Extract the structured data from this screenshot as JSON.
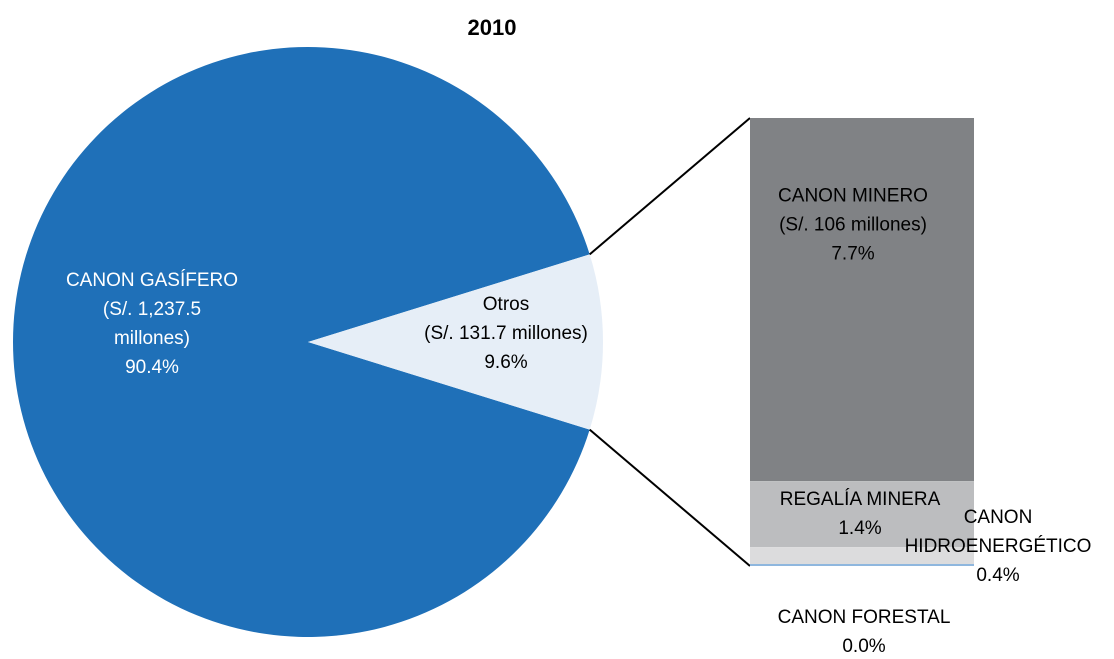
{
  "chart_data": {
    "type": "bar-of-pie",
    "title": "2010",
    "colors": {
      "canon_gasifero": "#1f70b8",
      "otros": "#e6eef7",
      "canon_minero": "#808285",
      "regalia_minera": "#bcbdbf",
      "canon_hidroenergetico": "#dcdcdd",
      "canon_forestal": "#8fb7de",
      "connector": "#000000"
    },
    "pie": {
      "slices": [
        {
          "key": "canon_gasifero",
          "label_lines": [
            "CANON GASÍFERO",
            "(S/. 1,237.5",
            "millones)",
            "90.4%"
          ],
          "amount_millions": 1237.5,
          "percent": 90.4
        },
        {
          "key": "otros",
          "label_lines": [
            "Otros",
            "(S/. 131.7 millones)",
            "9.6%"
          ],
          "amount_millions": 131.7,
          "percent": 9.6
        }
      ]
    },
    "bar": {
      "segments": [
        {
          "key": "canon_minero",
          "label_lines": [
            "CANON MINERO",
            "(S/. 106 millones)",
            "7.7%"
          ],
          "amount_millions": 106,
          "percent": 7.7
        },
        {
          "key": "regalia_minera",
          "label_lines": [
            "REGALÍA MINERA",
            "1.4%"
          ],
          "percent": 1.4
        },
        {
          "key": "canon_hidroenergetico",
          "label_lines": [
            "CANON",
            "HIDROENERGÉTICO",
            "0.4%"
          ],
          "percent": 0.4
        },
        {
          "key": "canon_forestal",
          "label_lines": [
            "CANON FORESTAL",
            "0.0%"
          ],
          "percent": 0.0
        }
      ]
    }
  }
}
